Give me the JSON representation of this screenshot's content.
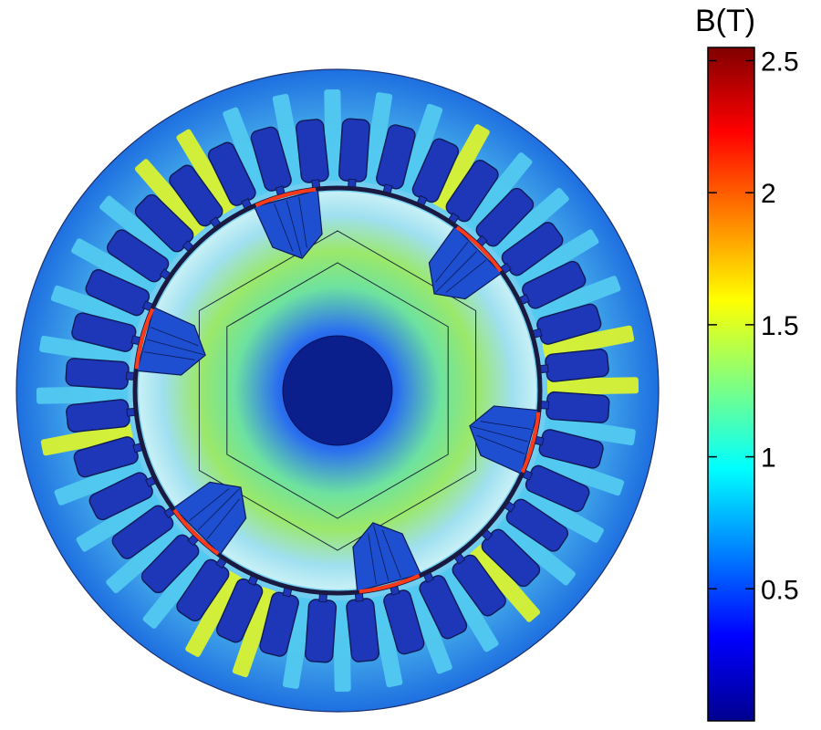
{
  "colorbar": {
    "title": "B(T)",
    "range": [
      0,
      2.55
    ],
    "ticks": [
      {
        "value": 0.5,
        "label": "0.5"
      },
      {
        "value": 1,
        "label": "1"
      },
      {
        "value": 1.5,
        "label": "1.5"
      },
      {
        "value": 2,
        "label": "2"
      },
      {
        "value": 2.5,
        "label": "2.5"
      }
    ],
    "colormap": [
      "#00008f",
      "#0000ff",
      "#0080ff",
      "#00ffff",
      "#80ff80",
      "#ffff00",
      "#ff8000",
      "#ff0000",
      "#800000"
    ]
  },
  "motor": {
    "stator_slots": 36,
    "rotor_poles": 6,
    "colors": {
      "stator_yoke": "#2f9be8",
      "stator_hot": "#6fe0c8",
      "slot": "#1d37b8",
      "slot_outline": "#101a55",
      "tooth": "#52c9f0",
      "tooth_hot": "#d9f230",
      "air_gap": "#1a1a40",
      "rotor_outer": "#8fd8f0",
      "rotor_core": "#8fe28a",
      "rotor_inner": "#5ab8f2",
      "shaft": "#0a1e8c",
      "magnet": "#1e4fd0",
      "magnet_hot": "#ff3a1a",
      "bridge": "#b6efe0"
    }
  }
}
